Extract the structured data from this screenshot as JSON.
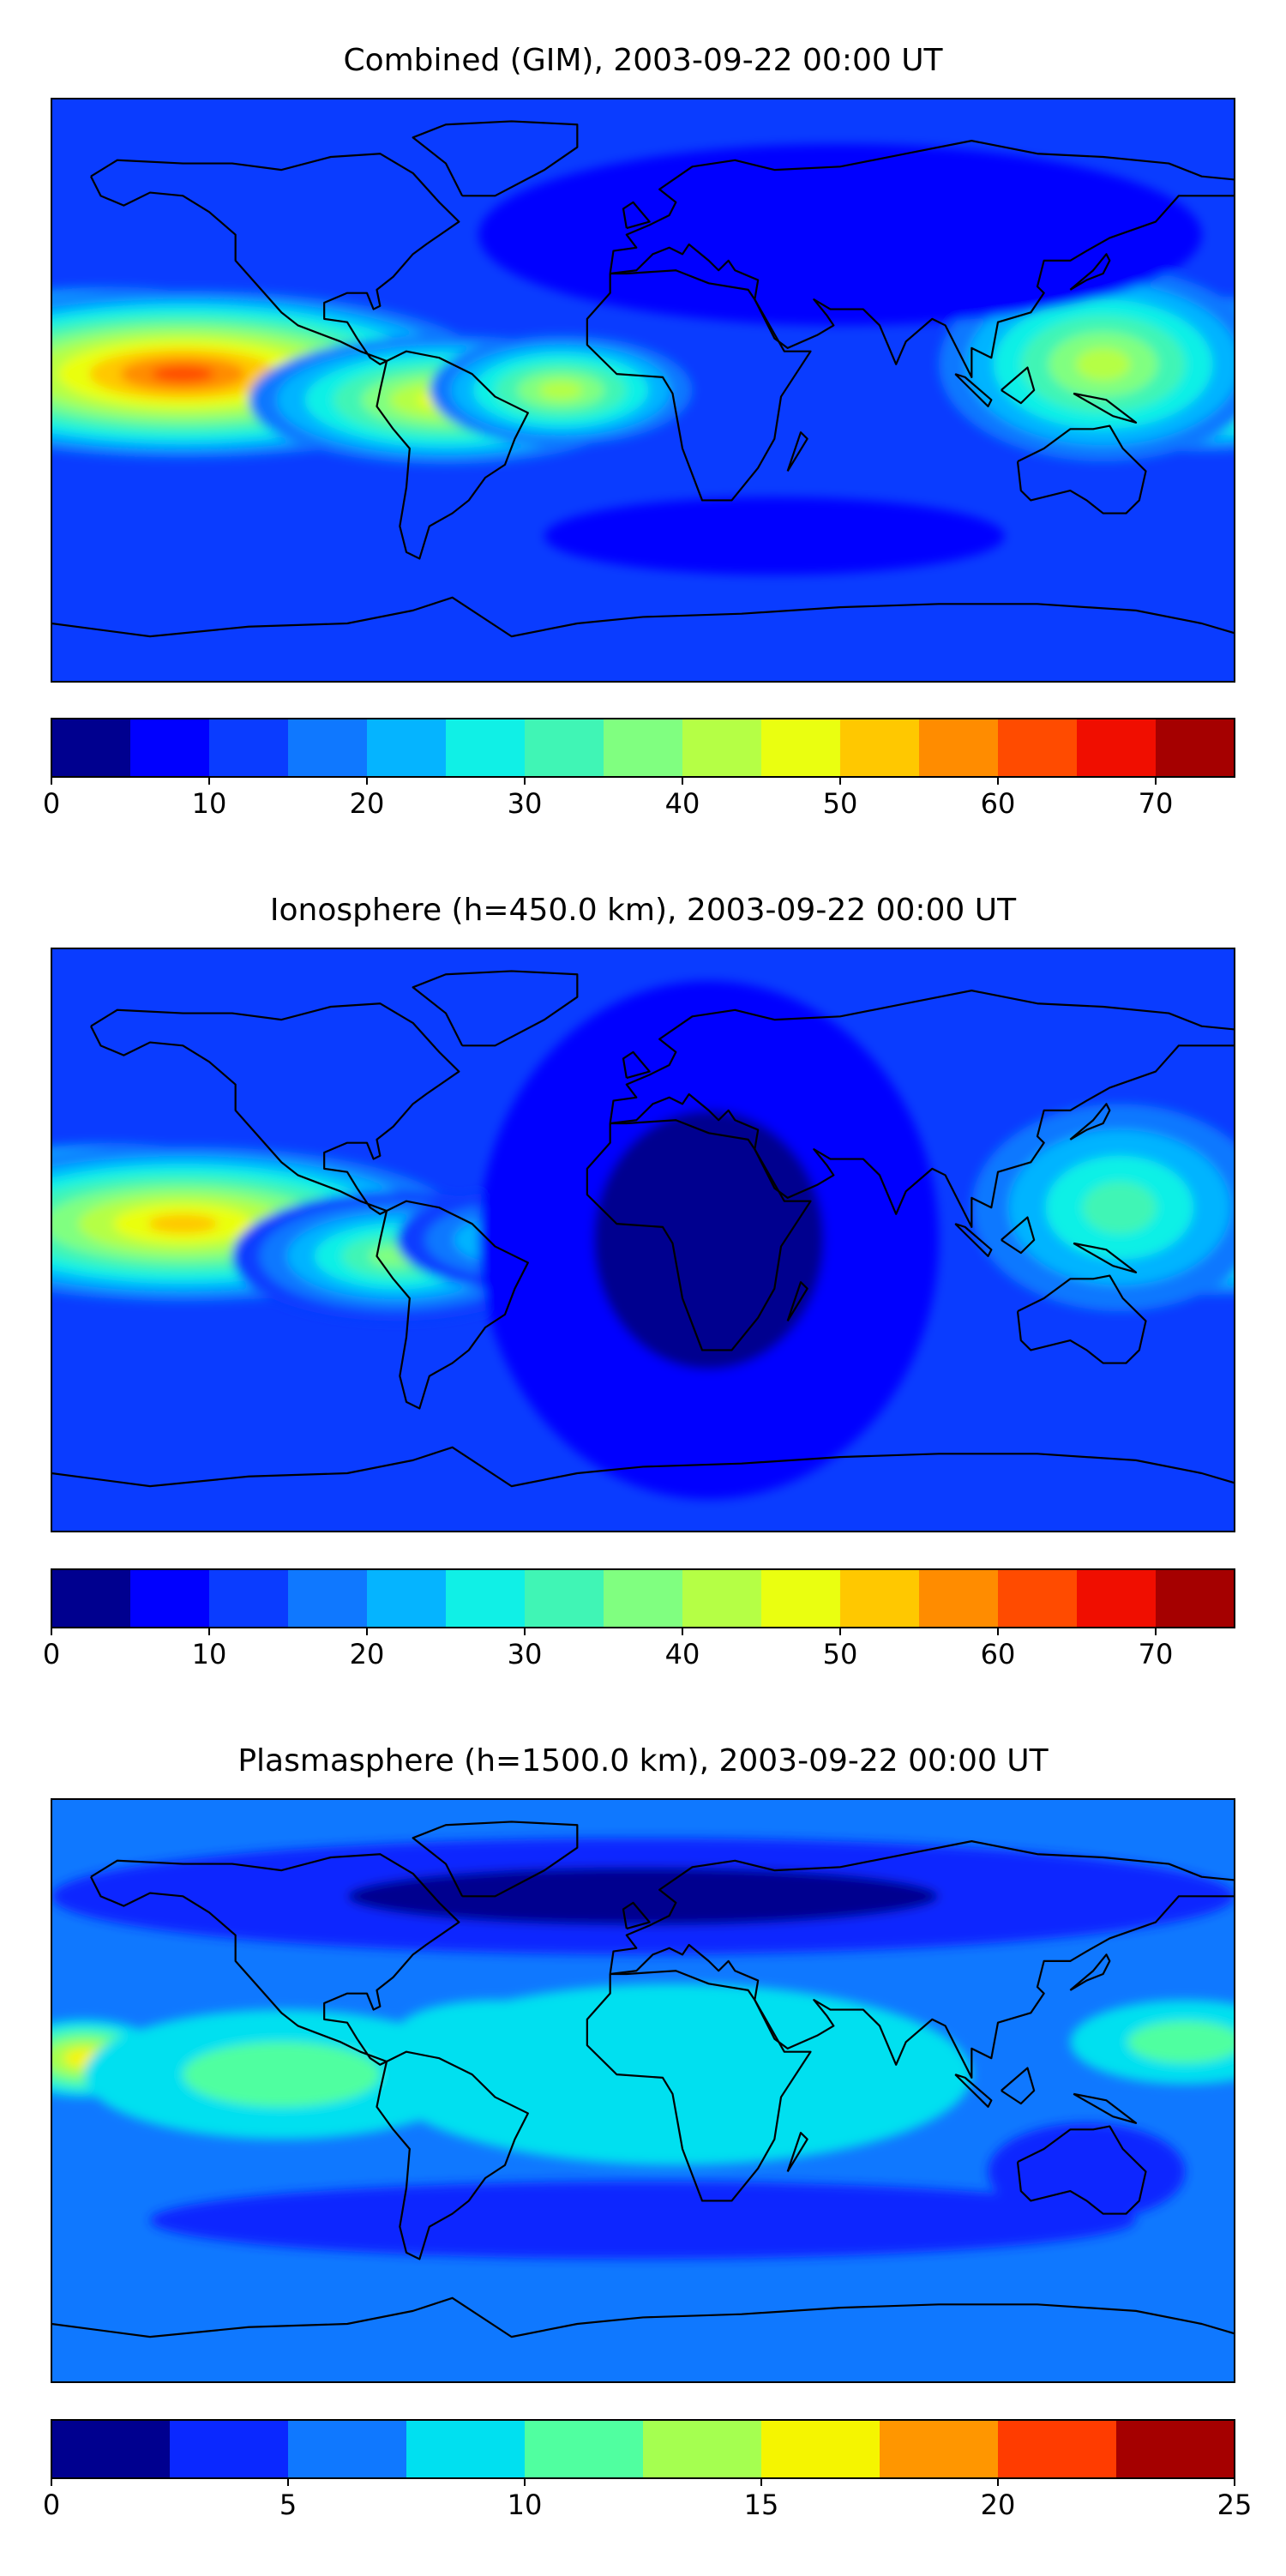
{
  "chart_data": [
    {
      "type": "heatmap",
      "title": "Combined (GIM), 2003-09-22 00:00 UT",
      "colorbar": {
        "min": 0,
        "max": 75,
        "step": 5,
        "ticks": [
          0,
          10,
          20,
          30,
          40,
          50,
          60,
          70
        ],
        "colors": [
          "#00008f",
          "#0000ff",
          "#0a3cff",
          "#0f78ff",
          "#05b4ff",
          "#10f0e6",
          "#40f5b5",
          "#80ff80",
          "#b5ff45",
          "#eaff10",
          "#ffc800",
          "#ff8c00",
          "#ff4b00",
          "#f00e00",
          "#a50000"
        ]
      },
      "blobs": [
        {
          "lon": -165,
          "lat": 10,
          "value": 75,
          "rx": 70,
          "ry": 22
        },
        {
          "lon": -140,
          "lat": 5,
          "value": 62,
          "rx": 95,
          "ry": 26
        },
        {
          "lon": -60,
          "lat": -3,
          "value": 48,
          "rx": 60,
          "ry": 20
        },
        {
          "lon": -25,
          "lat": 0,
          "value": 42,
          "rx": 40,
          "ry": 17
        },
        {
          "lon": 172,
          "lat": 5,
          "value": 55,
          "rx": 55,
          "ry": 24
        },
        {
          "lon": 140,
          "lat": 8,
          "value": 40,
          "rx": 50,
          "ry": 30
        },
        {
          "lon": 60,
          "lat": 48,
          "value": 5,
          "rx": 110,
          "ry": 28
        },
        {
          "lon": 40,
          "lat": -45,
          "value": 6,
          "rx": 70,
          "ry": 12
        }
      ],
      "background": 12
    },
    {
      "type": "heatmap",
      "title": "Ionosphere  (h=450.0 km), 2003-09-22 00:00 UT",
      "colorbar": {
        "min": 0,
        "max": 75,
        "step": 5,
        "ticks": [
          0,
          10,
          20,
          30,
          40,
          50,
          60,
          70
        ],
        "colors": [
          "#00008f",
          "#0000ff",
          "#0a3cff",
          "#0f78ff",
          "#05b4ff",
          "#10f0e6",
          "#40f5b5",
          "#80ff80",
          "#b5ff45",
          "#eaff10",
          "#ffc800",
          "#ff8c00",
          "#ff4b00",
          "#f00e00",
          "#a50000"
        ]
      },
      "blobs": [
        {
          "lon": -165,
          "lat": 12,
          "value": 62,
          "rx": 60,
          "ry": 18
        },
        {
          "lon": -140,
          "lat": 5,
          "value": 52,
          "rx": 85,
          "ry": 24
        },
        {
          "lon": -75,
          "lat": -5,
          "value": 38,
          "rx": 50,
          "ry": 20
        },
        {
          "lon": -40,
          "lat": 0,
          "value": 28,
          "rx": 35,
          "ry": 15
        },
        {
          "lon": 175,
          "lat": 5,
          "value": 50,
          "rx": 50,
          "ry": 22
        },
        {
          "lon": 145,
          "lat": 10,
          "value": 32,
          "rx": 45,
          "ry": 32
        },
        {
          "lon": 20,
          "lat": 0,
          "value": 2,
          "rx": 70,
          "ry": 80
        }
      ],
      "background": 10
    },
    {
      "type": "heatmap",
      "title": "Plasmasphere (h=1500.0 km), 2003-09-22 00:00 UT",
      "colorbar": {
        "min": 0,
        "max": 25,
        "step": 2.5,
        "ticks": [
          0,
          5,
          10,
          15,
          20,
          25
        ],
        "colors": [
          "#00008f",
          "#0a28ff",
          "#0f78ff",
          "#00e0f0",
          "#50ffa0",
          "#a5ff50",
          "#f5f500",
          "#ff9600",
          "#ff3c00",
          "#a50000"
        ]
      },
      "blobs": [
        {
          "lon": -170,
          "lat": 10,
          "value": 16,
          "rx": 25,
          "ry": 12
        },
        {
          "lon": -75,
          "lat": 5,
          "value": 16,
          "rx": 22,
          "ry": 14
        },
        {
          "lon": -110,
          "lat": 5,
          "value": 12,
          "rx": 60,
          "ry": 20
        },
        {
          "lon": -45,
          "lat": 18,
          "value": 12,
          "rx": 30,
          "ry": 10
        },
        {
          "lon": 10,
          "lat": 5,
          "value": 9,
          "rx": 90,
          "ry": 28
        },
        {
          "lon": 165,
          "lat": 15,
          "value": 11,
          "rx": 35,
          "ry": 13
        },
        {
          "lon": 135,
          "lat": -25,
          "value": 3,
          "rx": 30,
          "ry": 15
        },
        {
          "lon": 0,
          "lat": 60,
          "value": 2,
          "rx": 180,
          "ry": 18
        },
        {
          "lon": 0,
          "lat": -40,
          "value": 3,
          "rx": 150,
          "ry": 12
        }
      ],
      "background": 6
    }
  ]
}
